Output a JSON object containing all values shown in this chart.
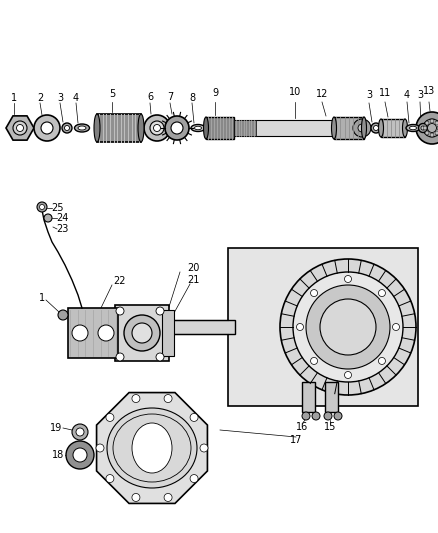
{
  "bg_color": "#ffffff",
  "line_color": "#000000",
  "fig_width": 4.38,
  "fig_height": 5.33,
  "dpi": 100
}
